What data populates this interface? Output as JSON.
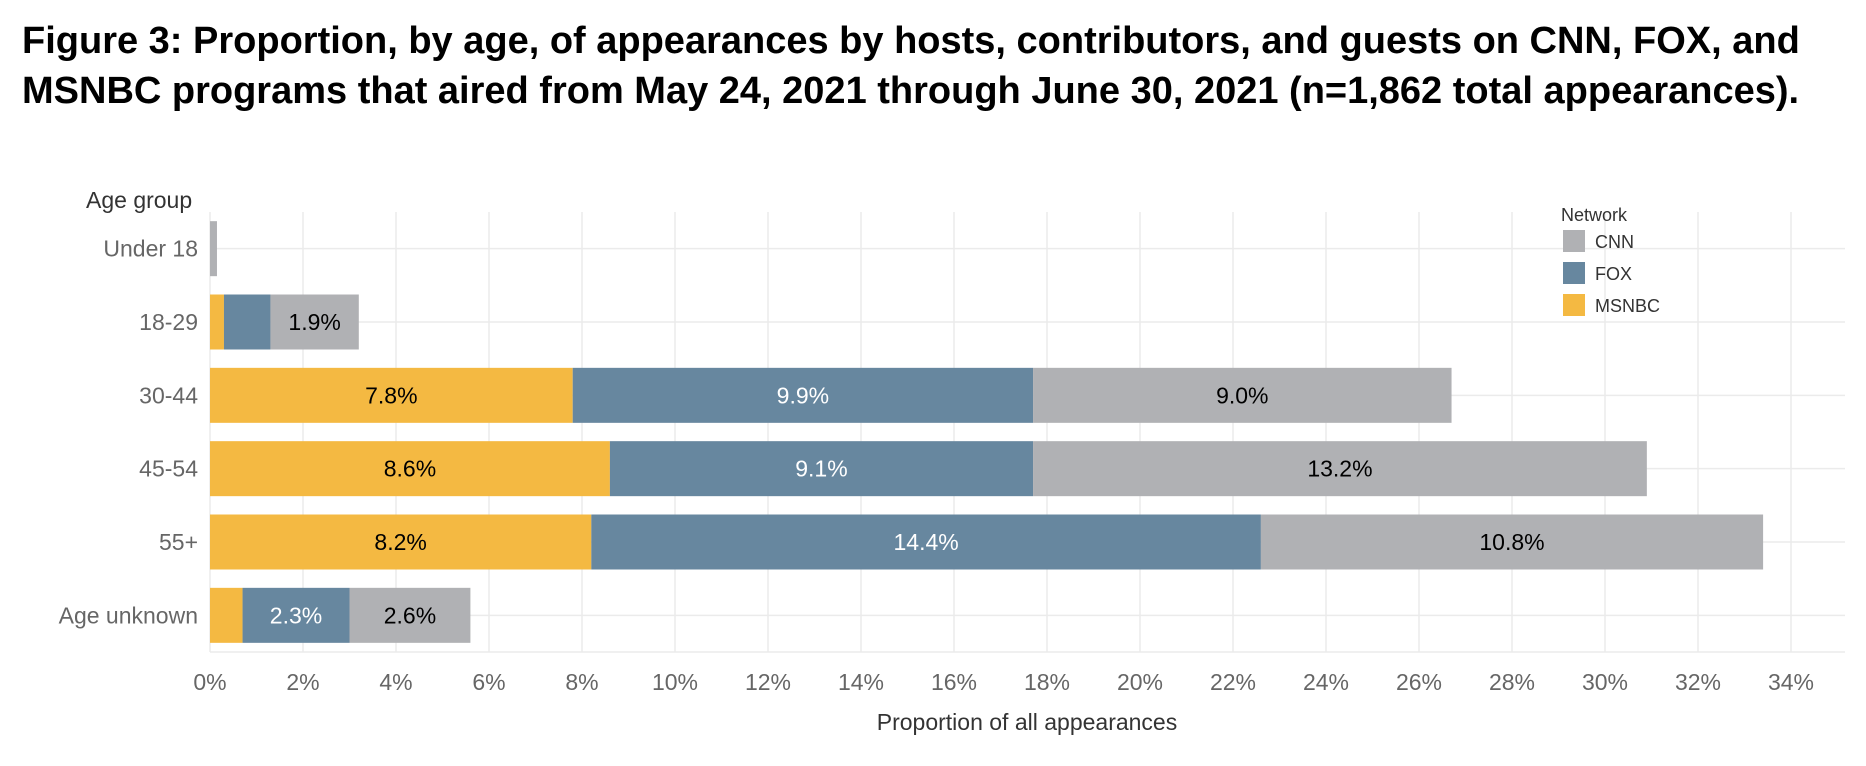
{
  "title_line1": "Figure 3: Proportion, by age, of appearances by hosts, contributors, and guests on CNN, FOX, and",
  "title_line2": "MSNBC programs that aired from May 24, 2021 through June 30, 2021 (n=1,862 total appearances).",
  "chart_data": {
    "type": "bar",
    "orientation": "horizontal",
    "stacked": true,
    "ylabel": "Age group",
    "xlabel": "Proportion of all appearances",
    "categories": [
      "Under 18",
      "18-29",
      "30-44",
      "45-54",
      "55+",
      "Age unknown"
    ],
    "xlim": [
      0,
      35
    ],
    "xticks": [
      0,
      2,
      4,
      6,
      8,
      10,
      12,
      14,
      16,
      18,
      20,
      22,
      24,
      26,
      28,
      30,
      32,
      34
    ],
    "xtick_suffix": "%",
    "grid": true,
    "legend": {
      "title": "Network",
      "position": "top-right"
    },
    "series": [
      {
        "name": "MSNBC",
        "color": "#F4B942",
        "label_color": "#000000",
        "values": [
          0,
          0.3,
          7.8,
          8.6,
          8.2,
          0.7
        ],
        "labels": [
          "",
          "",
          "7.8%",
          "8.6%",
          "8.2%",
          ""
        ]
      },
      {
        "name": "FOX",
        "color": "#67879F",
        "label_color": "#ffffff",
        "values": [
          0,
          1.0,
          9.9,
          9.1,
          14.4,
          2.3
        ],
        "labels": [
          "",
          "",
          "9.9%",
          "9.1%",
          "14.4%",
          "2.3%"
        ]
      },
      {
        "name": "CNN",
        "color": "#B0B1B4",
        "label_color": "#000000",
        "values": [
          0.15,
          1.9,
          9.0,
          13.2,
          10.8,
          2.6
        ],
        "labels": [
          "",
          "1.9%",
          "9.0%",
          "13.2%",
          "10.8%",
          "2.6%"
        ]
      }
    ],
    "legend_order": [
      "CNN",
      "FOX",
      "MSNBC"
    ]
  }
}
